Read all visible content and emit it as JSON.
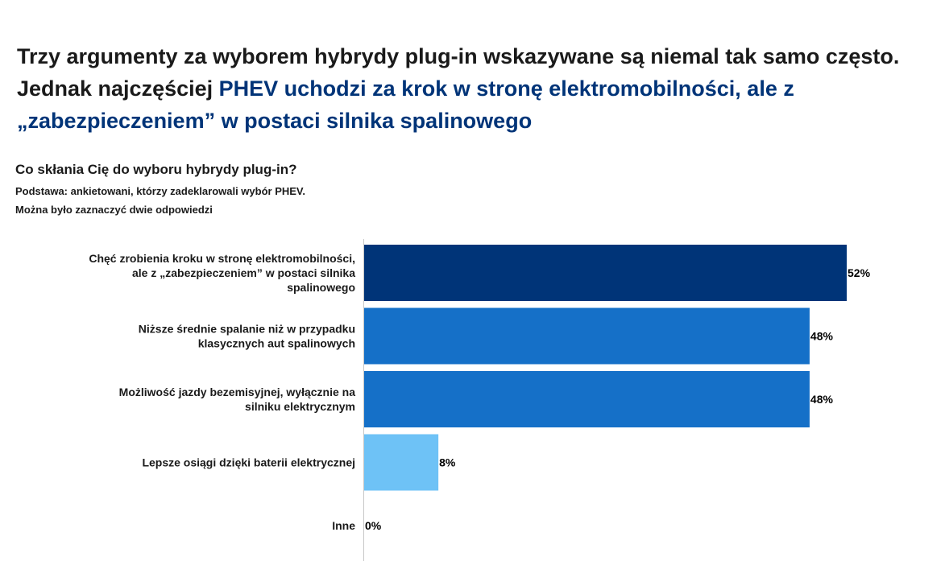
{
  "headline": {
    "part1": "Trzy argumenty za wyborem hybrydy plug-in wskazywane są niemal tak samo często. Jednak najczęściej ",
    "part2": "PHEV uchodzi za krok w stronę elektromobilności, ale z „zabezpieczeniem” w postaci silnika spalinowego"
  },
  "question": "Co skłania Cię do wyboru hybrydy plug-in?",
  "base_note": "Podstawa: ankietowani, którzy zadeklarowali wybór PHEV.",
  "multi_note": "Można było zaznaczyć dwie odpowiedzi",
  "colors": {
    "dark": "#003478",
    "mid": "#1570c8",
    "light": "#6ec2f6",
    "accent_text": "#003478"
  },
  "chart_data": {
    "type": "bar",
    "orientation": "horizontal",
    "categories": [
      [
        "Chęć zrobienia kroku w stronę elektromobilności,",
        "ale z „zabezpieczeniem” w postaci silnika",
        "spalinowego"
      ],
      [
        "Niższe średnie spalanie niż w przypadku",
        "klasycznych aut spalinowych"
      ],
      [
        "Możliwość jazdy bezemisyjnej, wyłącznie na",
        "silniku elektrycznym"
      ],
      [
        "Lepsze osiągi dzięki baterii elektrycznej"
      ],
      [
        "Inne"
      ]
    ],
    "values": [
      52,
      48,
      48,
      8,
      0
    ],
    "value_labels": [
      "52%",
      "48%",
      "48%",
      "8%",
      "0%"
    ],
    "bar_colors": [
      "#003478",
      "#1570c8",
      "#1570c8",
      "#6ec2f6",
      "#6ec2f6"
    ],
    "xlim": [
      0,
      52
    ],
    "grid": false
  }
}
